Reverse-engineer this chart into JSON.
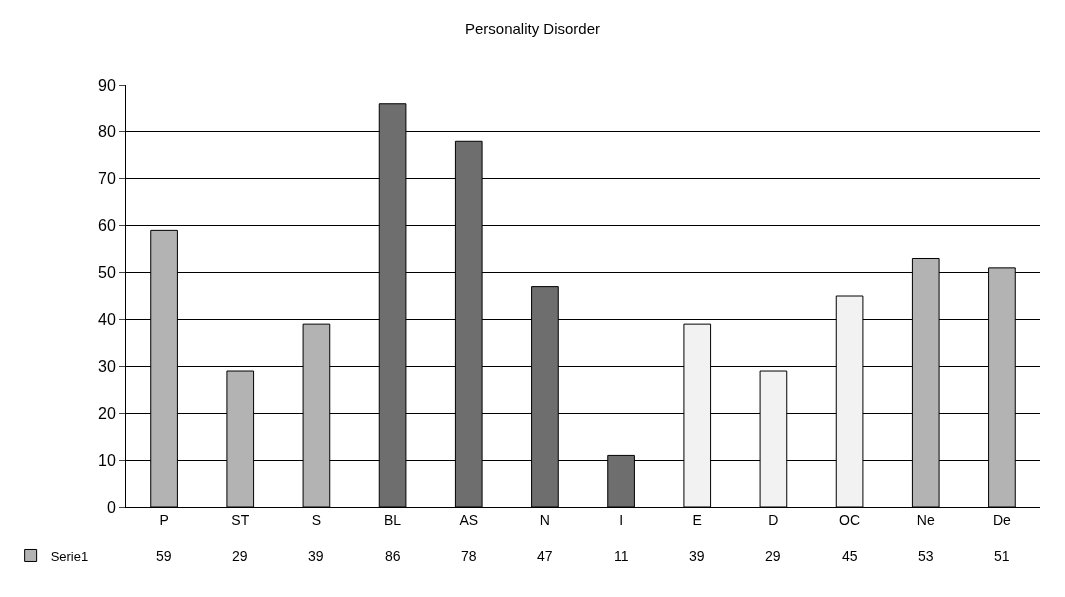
{
  "chart_data": {
    "type": "bar",
    "title": "Personality Disorder",
    "categories": [
      "P",
      "ST",
      "S",
      "BL",
      "AS",
      "N",
      "I",
      "E",
      "D",
      "OC",
      "Ne",
      "De"
    ],
    "series": [
      {
        "name": "Serie1",
        "colors": [
          "#b3b3b3",
          "#b3b3b3",
          "#b3b3b3",
          "#6e6e6e",
          "#6e6e6e",
          "#6e6e6e",
          "#6e6e6e",
          "#f2f2f2",
          "#f2f2f2",
          "#f2f2f2",
          "#b3b3b3",
          "#b3b3b3"
        ],
        "values": [
          59,
          29,
          39,
          86,
          78,
          47,
          11,
          39,
          29,
          45,
          53,
          51
        ]
      }
    ],
    "ylim": [
      0,
      90
    ],
    "yticks": [
      0,
      10,
      20,
      30,
      40,
      50,
      60,
      70,
      80,
      90
    ],
    "grid": "y",
    "data_labels": true,
    "legend": "bottom left"
  }
}
